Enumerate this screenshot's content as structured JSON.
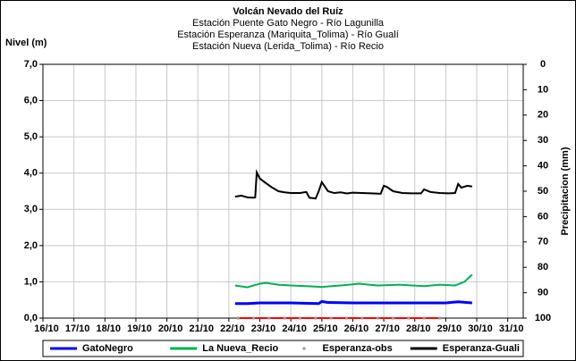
{
  "chart_data": {
    "type": "line",
    "title": "Volcán Nevado del Ruíz",
    "subtitles": [
      "Estación Puente Gato Negro - Río Lagunilla",
      "Estación Esperanza (Mariquita_Tolima) - Río Gualí",
      "Estación Nueva (Lerida_Tolima) - Río Recio"
    ],
    "y_label": "Nivel (m)",
    "y2_label": "Precipitacion (mm)",
    "xlim": [
      16,
      31.5
    ],
    "xticks": [
      {
        "value": 16,
        "label": "16/10"
      },
      {
        "value": 17,
        "label": "17/10"
      },
      {
        "value": 18,
        "label": "18/10"
      },
      {
        "value": 19,
        "label": "19/10"
      },
      {
        "value": 20,
        "label": "20/10"
      },
      {
        "value": 21,
        "label": "21/10"
      },
      {
        "value": 22,
        "label": "22/10"
      },
      {
        "value": 23,
        "label": "23/10"
      },
      {
        "value": 24,
        "label": "24/10"
      },
      {
        "value": 25,
        "label": "25/10"
      },
      {
        "value": 26,
        "label": "26/10"
      },
      {
        "value": 27,
        "label": "27/10"
      },
      {
        "value": 28,
        "label": "28/10"
      },
      {
        "value": 29,
        "label": "29/10"
      },
      {
        "value": 30,
        "label": "30/10"
      },
      {
        "value": 31,
        "label": "31/10"
      }
    ],
    "ylim": [
      0,
      7
    ],
    "yticks": [
      {
        "value": 0,
        "label": "0,0"
      },
      {
        "value": 1,
        "label": "1,0"
      },
      {
        "value": 2,
        "label": "2,0"
      },
      {
        "value": 3,
        "label": "3,0"
      },
      {
        "value": 4,
        "label": "4,0"
      },
      {
        "value": 5,
        "label": "5,0"
      },
      {
        "value": 6,
        "label": "6,0"
      },
      {
        "value": 7,
        "label": "7,0"
      }
    ],
    "y2lim": [
      100,
      0
    ],
    "y2ticks": [
      0,
      10,
      20,
      30,
      40,
      50,
      60,
      70,
      80,
      90,
      100
    ],
    "grid": true,
    "series": [
      {
        "name": "GatoNegro",
        "color": "#0000ff",
        "style": "line",
        "width": 3,
        "x": [
          22.2,
          22.6,
          23.0,
          24.0,
          24.9,
          25.0,
          25.2,
          26.0,
          27.0,
          28.0,
          29.0,
          29.4,
          29.85
        ],
        "values": [
          0.4,
          0.4,
          0.42,
          0.42,
          0.4,
          0.46,
          0.43,
          0.42,
          0.42,
          0.42,
          0.42,
          0.45,
          0.42
        ]
      },
      {
        "name": "La Nueva_Recio",
        "color": "#00b050",
        "style": "line",
        "width": 2,
        "x": [
          22.2,
          22.6,
          23.0,
          23.2,
          23.6,
          24.0,
          24.5,
          25.0,
          25.6,
          26.2,
          26.8,
          27.5,
          28.3,
          28.8,
          29.3,
          29.6,
          29.85
        ],
        "values": [
          0.9,
          0.85,
          0.95,
          0.97,
          0.92,
          0.9,
          0.88,
          0.86,
          0.9,
          0.95,
          0.9,
          0.92,
          0.88,
          0.92,
          0.9,
          1.0,
          1.2
        ]
      },
      {
        "name": "Esperanza-obs",
        "color": "#ff0000",
        "marker_color": "#999999",
        "style": "points",
        "width": 2,
        "x": [
          22.3,
          22.8,
          23.3,
          23.8,
          24.3,
          24.8,
          25.3,
          25.8,
          26.3,
          26.8,
          27.3,
          27.8,
          28.3,
          28.8
        ],
        "values": [
          0,
          0,
          0,
          0,
          0,
          0,
          0,
          0,
          0,
          0,
          0,
          0,
          0,
          0
        ]
      },
      {
        "name": "Esperanza-Guali",
        "color": "#000000",
        "style": "line",
        "width": 2,
        "x": [
          22.2,
          22.4,
          22.6,
          22.8,
          22.85,
          22.9,
          23.0,
          23.2,
          23.4,
          23.6,
          23.8,
          24.0,
          24.3,
          24.5,
          24.6,
          24.8,
          24.9,
          25.0,
          25.2,
          25.4,
          25.6,
          25.8,
          26.0,
          26.3,
          26.6,
          26.9,
          27.0,
          27.1,
          27.3,
          27.6,
          27.9,
          28.2,
          28.3,
          28.5,
          28.8,
          29.1,
          29.3,
          29.4,
          29.5,
          29.7,
          29.85
        ],
        "values": [
          3.35,
          3.38,
          3.33,
          3.32,
          3.33,
          4.02,
          3.85,
          3.72,
          3.6,
          3.5,
          3.47,
          3.45,
          3.45,
          3.48,
          3.32,
          3.3,
          3.5,
          3.75,
          3.5,
          3.45,
          3.47,
          3.44,
          3.46,
          3.45,
          3.44,
          3.43,
          3.65,
          3.62,
          3.5,
          3.45,
          3.44,
          3.44,
          3.55,
          3.48,
          3.45,
          3.44,
          3.45,
          3.7,
          3.6,
          3.65,
          3.63
        ]
      }
    ]
  }
}
